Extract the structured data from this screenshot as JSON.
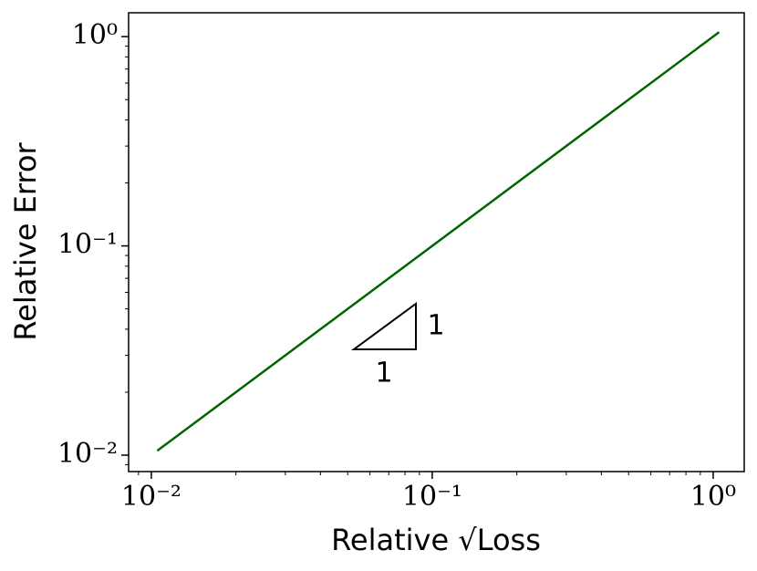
{
  "chart_data": {
    "type": "line",
    "x_label": "Relative √Loss",
    "y_label": "Relative Error",
    "x": [
      0.0105,
      1.05
    ],
    "series": [
      {
        "color": "#006400",
        "values": [
          0.0105,
          1.05
        ]
      }
    ],
    "log_x": true,
    "log_y": true,
    "xlim": [
      0.0083,
      1.29
    ],
    "ylim": [
      0.00835,
      1.3
    ],
    "xticks": [
      {
        "value": 0.01,
        "label": "10⁻²"
      },
      {
        "value": 0.1,
        "label": "10⁻¹"
      },
      {
        "value": 1,
        "label": "10⁰"
      }
    ],
    "yticks": [
      {
        "value": 0.01,
        "label": "10⁻²"
      },
      {
        "value": 0.1,
        "label": "10⁻¹"
      },
      {
        "value": 1,
        "label": "10⁰"
      }
    ],
    "annotations": [
      "1",
      "1"
    ]
  }
}
